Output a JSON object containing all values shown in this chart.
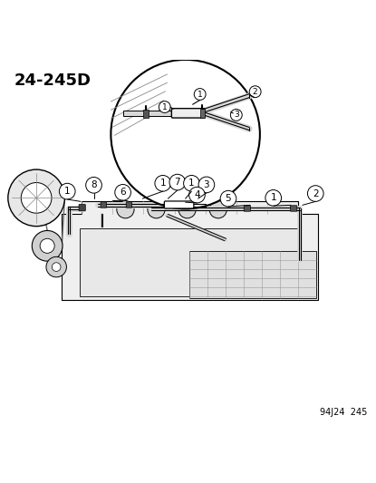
{
  "title": "24-245D",
  "footnote": "94J24  245",
  "background_color": "#ffffff",
  "line_color": "#000000",
  "figsize": [
    4.15,
    5.33
  ],
  "dpi": 100
}
